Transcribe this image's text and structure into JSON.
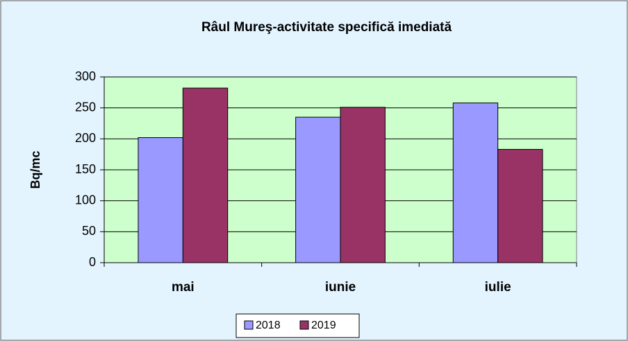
{
  "chart_data": {
    "type": "bar",
    "title": "Râul Mureş-activitate specifică imediată",
    "y_label": "Bq/mc",
    "categories": [
      "mai",
      "iunie",
      "iulie"
    ],
    "series": [
      {
        "name": "2018",
        "color": "#9999ff",
        "values": [
          202,
          235,
          258
        ]
      },
      {
        "name": "2019",
        "color": "#993366",
        "values": [
          282,
          251,
          183
        ]
      }
    ],
    "ylim": [
      0,
      300
    ],
    "yticks": [
      0,
      50,
      100,
      150,
      200,
      250,
      300
    ],
    "grid": true,
    "legend": "bottom"
  }
}
